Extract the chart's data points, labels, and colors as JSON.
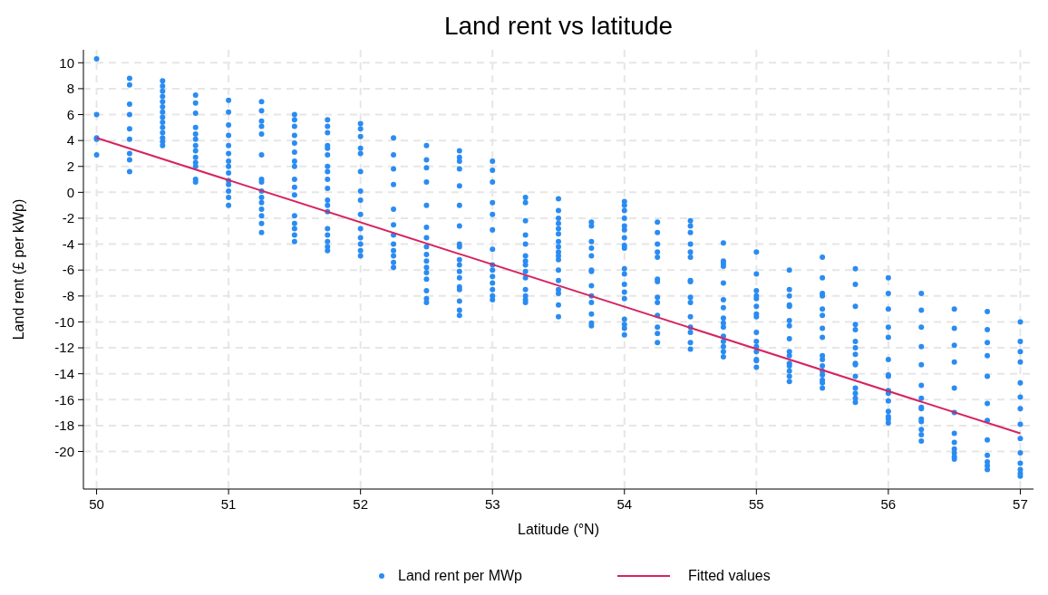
{
  "chart_data": {
    "type": "scatter",
    "title": "Land rent vs latitude",
    "xlabel": "Latitude (°N)",
    "ylabel": "Land rent (£ per kWp)",
    "xlim": [
      49.9,
      57.1
    ],
    "ylim": [
      -22.9,
      11
    ],
    "xticks": [
      50,
      51,
      52,
      53,
      54,
      55,
      56,
      57
    ],
    "yticks": [
      10,
      8,
      6,
      4,
      2,
      0,
      -2,
      -4,
      -6,
      -8,
      -10,
      -12,
      -14,
      -16,
      -18,
      -20
    ],
    "grid": true,
    "legend": "bottom",
    "series": [
      {
        "name": "Land rent per MWp",
        "marker": "circle",
        "color": "#2a8cf2",
        "x": [
          50,
          50,
          50,
          50,
          50,
          50.25,
          50.25,
          50.25,
          50.25,
          50.25,
          50.25,
          50.25,
          50.25,
          50.25,
          50.5,
          50.5,
          50.5,
          50.5,
          50.5,
          50.5,
          50.5,
          50.5,
          50.5,
          50.5,
          50.5,
          50.5,
          50.5,
          50.5,
          50.75,
          50.75,
          50.75,
          50.75,
          50.75,
          50.75,
          50.75,
          50.75,
          50.75,
          50.75,
          50.75,
          50.75,
          50.75,
          51,
          51,
          51,
          51,
          51,
          51,
          51,
          51,
          51,
          51,
          51,
          51,
          51,
          51,
          51.25,
          51.25,
          51.25,
          51.25,
          51.25,
          51.25,
          51.25,
          51.25,
          51.25,
          51.25,
          51.25,
          51.25,
          51.25,
          51.25,
          51.25,
          51.5,
          51.5,
          51.5,
          51.5,
          51.5,
          51.5,
          51.5,
          51.5,
          51.5,
          51.5,
          51.5,
          51.5,
          51.5,
          51.5,
          51.5,
          51.5,
          51.75,
          51.75,
          51.75,
          51.75,
          51.75,
          51.75,
          51.75,
          51.75,
          51.75,
          51.75,
          51.75,
          51.75,
          51.75,
          51.75,
          51.75,
          51.75,
          51.75,
          51.75,
          52,
          52,
          52,
          52,
          52,
          52,
          52,
          52,
          52,
          52,
          52,
          52,
          52,
          52,
          52.25,
          52.25,
          52.25,
          52.25,
          52.25,
          52.25,
          52.25,
          52.25,
          52.25,
          52.25,
          52.25,
          52.25,
          52.5,
          52.5,
          52.5,
          52.5,
          52.5,
          52.5,
          52.5,
          52.5,
          52.5,
          52.5,
          52.5,
          52.5,
          52.5,
          52.5,
          52.5,
          52.5,
          52.75,
          52.75,
          52.75,
          52.75,
          52.75,
          52.75,
          52.75,
          52.75,
          52.75,
          52.75,
          52.75,
          52.75,
          52.75,
          52.75,
          52.75,
          52.75,
          52.75,
          52.75,
          53,
          53,
          53,
          53,
          53,
          53,
          53,
          53,
          53,
          53,
          53,
          53,
          53,
          53,
          53.25,
          53.25,
          53.25,
          53.25,
          53.25,
          53.25,
          53.25,
          53.25,
          53.25,
          53.25,
          53.25,
          53.25,
          53.25,
          53.25,
          53.5,
          53.5,
          53.5,
          53.5,
          53.5,
          53.5,
          53.5,
          53.5,
          53.5,
          53.5,
          53.5,
          53.5,
          53.5,
          53.5,
          53.5,
          53.5,
          53.5,
          53.75,
          53.75,
          53.75,
          53.75,
          53.75,
          53.75,
          53.75,
          53.75,
          53.75,
          53.75,
          53.75,
          53.75,
          53.75,
          54,
          54,
          54,
          54,
          54,
          54,
          54,
          54,
          54,
          54,
          54,
          54,
          54,
          54,
          54,
          54,
          54,
          54,
          54.25,
          54.25,
          54.25,
          54.25,
          54.25,
          54.25,
          54.25,
          54.25,
          54.25,
          54.25,
          54.25,
          54.25,
          54.25,
          54.5,
          54.5,
          54.5,
          54.5,
          54.5,
          54.5,
          54.5,
          54.5,
          54.5,
          54.5,
          54.5,
          54.5,
          54.5,
          54.5,
          54.5,
          54.75,
          54.75,
          54.75,
          54.75,
          54.75,
          54.75,
          54.75,
          54.75,
          54.75,
          54.75,
          54.75,
          54.75,
          54.75,
          54.75,
          54.75,
          55,
          55,
          55,
          55,
          55,
          55,
          55,
          55,
          55,
          55,
          55,
          55,
          55,
          55,
          55,
          55.25,
          55.25,
          55.25,
          55.25,
          55.25,
          55.25,
          55.25,
          55.25,
          55.25,
          55.25,
          55.25,
          55.25,
          55.25,
          55.25,
          55.25,
          55.5,
          55.5,
          55.5,
          55.5,
          55.5,
          55.5,
          55.5,
          55.5,
          55.5,
          55.5,
          55.5,
          55.5,
          55.5,
          55.5,
          55.5,
          55.5,
          55.75,
          55.75,
          55.75,
          55.75,
          55.75,
          55.75,
          55.75,
          55.75,
          55.75,
          55.75,
          55.75,
          55.75,
          55.75,
          55.75,
          55.75,
          56,
          56,
          56,
          56,
          56,
          56,
          56,
          56,
          56,
          56,
          56,
          56,
          56,
          56,
          56,
          56.25,
          56.25,
          56.25,
          56.25,
          56.25,
          56.25,
          56.25,
          56.25,
          56.25,
          56.25,
          56.25,
          56.25,
          56.25,
          56.25,
          56.5,
          56.5,
          56.5,
          56.5,
          56.5,
          56.5,
          56.5,
          56.5,
          56.5,
          56.5,
          56.5,
          56.5,
          56.75,
          56.75,
          56.75,
          56.75,
          56.75,
          56.75,
          56.75,
          56.75,
          56.75,
          56.75,
          56.75,
          56.75,
          57,
          57,
          57,
          57,
          57,
          57,
          57,
          57,
          57,
          57,
          57,
          57,
          57,
          57
        ],
        "values": [
          10.3,
          6.0,
          4.2,
          4.1,
          2.9,
          8.8,
          8.3,
          6.8,
          6.0,
          4.9,
          4.1,
          3.0,
          2.5,
          1.6,
          8.6,
          8.2,
          7.8,
          7.4,
          7.0,
          6.6,
          6.2,
          5.8,
          5.4,
          5.0,
          4.6,
          4.2,
          3.9,
          3.6,
          7.5,
          6.9,
          6.1,
          5.0,
          4.5,
          4.1,
          3.6,
          3.2,
          2.7,
          2.3,
          2.0,
          1.0,
          0.8,
          7.1,
          6.2,
          5.2,
          4.4,
          3.6,
          3.0,
          2.4,
          2.0,
          1.5,
          0.9,
          0.6,
          0.1,
          -0.4,
          -1.0,
          7.0,
          6.3,
          5.5,
          5.1,
          4.5,
          2.9,
          1.0,
          0.8,
          0.1,
          -0.4,
          -0.8,
          -1.3,
          -1.8,
          -2.4,
          -3.1,
          6.0,
          5.6,
          5.1,
          4.4,
          3.8,
          3.1,
          2.4,
          2.0,
          1.0,
          0.4,
          -0.2,
          -1.8,
          -2.4,
          -2.8,
          -3.3,
          -3.8,
          5.6,
          5.1,
          4.6,
          3.6,
          3.4,
          2.9,
          2.0,
          1.6,
          1.0,
          0.3,
          -0.6,
          -1.0,
          -1.5,
          -2.8,
          -3.3,
          -3.8,
          -4.2,
          -4.5,
          5.3,
          4.9,
          4.3,
          3.4,
          3.0,
          1.6,
          0.1,
          -0.6,
          -1.7,
          -2.8,
          -3.5,
          -4.0,
          -4.5,
          -4.9,
          4.2,
          2.9,
          1.8,
          0.6,
          -1.3,
          -2.5,
          -3.3,
          -4.0,
          -4.5,
          -4.9,
          -5.4,
          -5.8,
          3.6,
          2.5,
          1.9,
          0.8,
          -1.0,
          -2.7,
          -3.5,
          -4.2,
          -4.8,
          -5.3,
          -5.8,
          -6.2,
          -6.7,
          -7.6,
          -8.2,
          -8.5,
          3.2,
          2.7,
          2.4,
          1.8,
          0.5,
          -1.0,
          -2.6,
          -4.0,
          -4.2,
          -5.2,
          -5.6,
          -6.1,
          -6.6,
          -7.3,
          -7.5,
          -8.4,
          -9.1,
          -9.5,
          2.4,
          1.7,
          0.8,
          -0.8,
          -1.7,
          -2.9,
          -4.4,
          -5.6,
          -6.0,
          -6.5,
          -7.0,
          -7.5,
          -8.0,
          -8.3,
          -0.4,
          -0.8,
          -2.2,
          -3.3,
          -4.0,
          -4.9,
          -5.3,
          -5.6,
          -6.1,
          -6.6,
          -7.5,
          -8.0,
          -8.3,
          -8.5,
          -0.5,
          -1.4,
          -2.0,
          -2.4,
          -2.8,
          -3.2,
          -3.8,
          -4.2,
          -4.6,
          -4.9,
          -5.2,
          -6.0,
          -6.8,
          -7.5,
          -7.8,
          -8.7,
          -9.6,
          -2.3,
          -2.6,
          -3.8,
          -4.3,
          -4.9,
          -6.0,
          -6.1,
          -7.2,
          -8.0,
          -8.5,
          -9.4,
          -10.1,
          -10.3,
          -0.7,
          -1.0,
          -1.4,
          -2.0,
          -2.6,
          -2.9,
          -3.5,
          -4.1,
          -4.3,
          -5.9,
          -6.3,
          -7.1,
          -7.7,
          -8.2,
          -9.8,
          -10.2,
          -10.5,
          -11.0,
          -2.3,
          -3.1,
          -4.0,
          -4.6,
          -5.0,
          -6.7,
          -6.9,
          -8.1,
          -8.5,
          -9.5,
          -10.4,
          -10.9,
          -11.6,
          -2.2,
          -2.6,
          -3.1,
          -4.0,
          -4.6,
          -5.0,
          -6.8,
          -6.9,
          -8.1,
          -8.5,
          -9.6,
          -10.4,
          -10.8,
          -11.6,
          -12.1,
          -3.9,
          -5.3,
          -5.5,
          -5.7,
          -7.0,
          -8.3,
          -8.9,
          -9.7,
          -10.1,
          -10.4,
          -11.1,
          -11.5,
          -11.9,
          -12.3,
          -12.7,
          -4.6,
          -6.3,
          -7.6,
          -8.0,
          -8.2,
          -8.8,
          -9.4,
          -9.6,
          -10.8,
          -11.5,
          -11.9,
          -12.3,
          -12.9,
          -13.0,
          -13.5,
          -6.0,
          -7.5,
          -8.0,
          -8.7,
          -8.8,
          -9.9,
          -10.3,
          -11.3,
          -12.3,
          -12.6,
          -13.2,
          -13.4,
          -13.8,
          -14.2,
          -14.6,
          -5.0,
          -6.6,
          -7.8,
          -8.0,
          -9.0,
          -9.5,
          -10.5,
          -11.2,
          -12.6,
          -12.9,
          -13.4,
          -13.8,
          -14.1,
          -14.5,
          -14.7,
          -15.1,
          -5.9,
          -7.1,
          -8.8,
          -10.2,
          -10.6,
          -11.5,
          -12.0,
          -12.5,
          -13.2,
          -13.3,
          -14.2,
          -15.1,
          -15.5,
          -15.9,
          -16.2,
          -6.6,
          -7.8,
          -9.0,
          -10.4,
          -11.2,
          -12.9,
          -14.1,
          -14.2,
          -15.3,
          -15.5,
          -16.1,
          -16.9,
          -17.3,
          -17.5,
          -17.8,
          -7.8,
          -9.1,
          -10.4,
          -11.9,
          -13.3,
          -14.9,
          -15.9,
          -16.6,
          -16.7,
          -17.5,
          -17.7,
          -18.3,
          -18.7,
          -19.2,
          -9.0,
          -10.5,
          -11.8,
          -13.1,
          -15.1,
          -17.0,
          -18.6,
          -19.3,
          -19.8,
          -20.1,
          -20.4,
          -20.6,
          -9.2,
          -10.6,
          -11.6,
          -12.6,
          -14.2,
          -16.3,
          -17.6,
          -19.1,
          -20.3,
          -20.8,
          -21.1,
          -21.4,
          -10.0,
          -11.5,
          -12.3,
          -13.1,
          -14.7,
          -15.8,
          -16.7,
          -17.9,
          -19.0,
          -20.1,
          -20.9,
          -21.4,
          -21.7,
          -21.9
        ]
      },
      {
        "name": "Fitted values",
        "type": "line",
        "color": "#d6245f",
        "x": [
          50,
          57
        ],
        "values": [
          4.2,
          -18.6
        ]
      }
    ]
  }
}
